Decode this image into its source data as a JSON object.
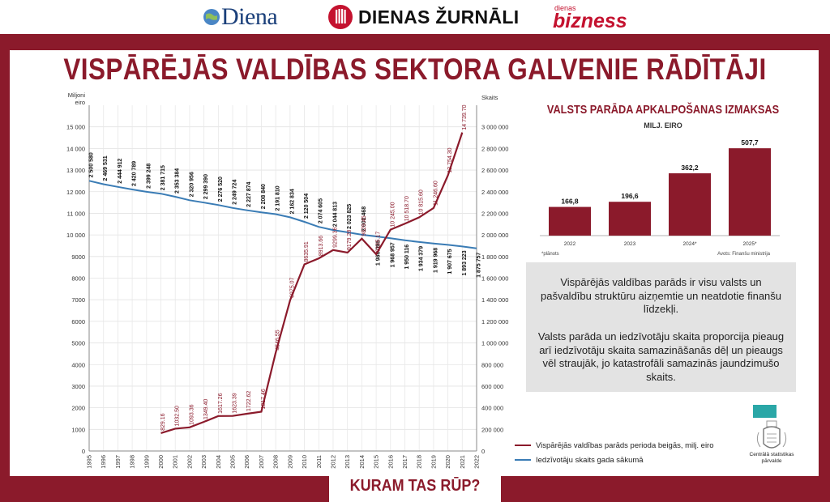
{
  "brands": {
    "diena": "Diena",
    "dienas_zurnali": "DIENAS ŽURNĀLI",
    "dienas_bizness_top": "dienas",
    "dienas_bizness_bottom": "bizness"
  },
  "title": "VISPĀRĒJĀS VALDĪBAS SEKTORA GALVENIE RĀDĪTĀJI",
  "footer_tab": "KURAM TAS RŪP?",
  "colors": {
    "brand_red": "#8b1a2b",
    "debt_line": "#8b1a2b",
    "population_line": "#3a7cb5",
    "info_box": "#e3e3e3",
    "teal": "#2aa7a7"
  },
  "chart_data": [
    {
      "type": "line",
      "left_axis_label": [
        "Miljoni",
        "eiro"
      ],
      "right_axis_label": "Skaits",
      "x": [
        "1995",
        "1996",
        "1997",
        "1998",
        "1999",
        "2000",
        "2001",
        "2002",
        "2003",
        "2004",
        "2005",
        "2006",
        "2007",
        "2008",
        "2009",
        "2010",
        "2011",
        "2012",
        "2013",
        "2014",
        "2015",
        "2016",
        "2017",
        "2018",
        "2019",
        "2020",
        "2021",
        "2022"
      ],
      "y_left_ticks": [
        "0",
        "1000",
        "2000",
        "3000",
        "4000",
        "5000",
        "6000",
        "7000",
        "8000",
        "9000",
        "10 000",
        "11 000",
        "12 000",
        "13 000",
        "14 000",
        "15 000"
      ],
      "y_left_range": [
        0,
        16000
      ],
      "y_right_ticks": [
        "0",
        "200 000",
        "400 000",
        "600 000",
        "800 000",
        "1 000 000",
        "1 200 000",
        "1 400 000",
        "1 600 000",
        "1 800 000",
        "2 000 000",
        "2 200 000",
        "2 400 000",
        "2 600 000",
        "2 800 000",
        "3 000 000"
      ],
      "y_right_range": [
        0,
        3200000
      ],
      "grid": true,
      "series": [
        {
          "name": "Vispārējās valdības parāds perioda beigās, milj. eiro",
          "axis": "left",
          "color": "#8b1a2b",
          "x": [
            "2000",
            "2001",
            "2002",
            "2003",
            "2004",
            "2005",
            "2006",
            "2007",
            "2008",
            "2009",
            "2010",
            "2011",
            "2012",
            "2013",
            "2014",
            "2015",
            "2016",
            "2017",
            "2018",
            "2019",
            "2020",
            "2021"
          ],
          "values": [
            829.16,
            1032.5,
            1093.36,
            1349.4,
            1617.26,
            1623.39,
            1722.62,
            1817.46,
            4546.55,
            6975.07,
            8635.91,
            8913.66,
            9299.36,
            9179.28,
            9829.45,
            9105.17,
            10245.0,
            10518.7,
            10815.6,
            11246.6,
            12754.3,
            14739.7
          ],
          "labels": [
            "829.16",
            "1032.50",
            "1093.36",
            "1349.40",
            "1617.26",
            "1623.39",
            "1722.62",
            "1817.46",
            "4546.55",
            "6975.07",
            "8635.91",
            "8913.66",
            "9299.36",
            "9179.28",
            "9829.45",
            "9105.17",
            "10 245.00",
            "10 518.70",
            "10 815.60",
            "11 246.60",
            "12 754.30",
            "14 739.70"
          ]
        },
        {
          "name": "Iedzīvotāju skaits gada sākumā",
          "axis": "right",
          "color": "#3a7cb5",
          "x": [
            "1995",
            "1996",
            "1997",
            "1998",
            "1999",
            "2000",
            "2001",
            "2002",
            "2003",
            "2004",
            "2005",
            "2006",
            "2007",
            "2008",
            "2009",
            "2010",
            "2011",
            "2012",
            "2013",
            "2014",
            "2015",
            "2016",
            "2017",
            "2018",
            "2019",
            "2020",
            "2021",
            "2022"
          ],
          "values": [
            2500580,
            2469531,
            2444912,
            2420789,
            2399248,
            2381715,
            2353384,
            2320956,
            2299390,
            2276520,
            2249724,
            2227874,
            2208840,
            2191810,
            2162834,
            2120504,
            2074605,
            2044813,
            2023825,
            2001468,
            1986096,
            1968957,
            1950116,
            1934379,
            1919968,
            1907675,
            1893223,
            1875757
          ],
          "labels": [
            "2 500 580",
            "2 469 531",
            "2 444 912",
            "2 420 789",
            "2 399 248",
            "2 381 715",
            "2 353 384",
            "2 320 956",
            "2 299 390",
            "2 276 520",
            "2 249 724",
            "2 227 874",
            "2 208 840",
            "2 191 810",
            "2 162 834",
            "2 120 504",
            "2 074 605",
            "2 044 813",
            "2 023 825",
            "2 001 468",
            "1 986 096",
            "1 968 957",
            "1 950 116",
            "1 934 379",
            "1 919 968",
            "1 907 675",
            "1 893 223",
            "1 875 757"
          ]
        }
      ]
    },
    {
      "type": "bar",
      "title": "VALSTS PARĀDA APKALPOŠANAS IZMAKSAS",
      "subtitle": "MILJ. EIRO",
      "categories": [
        "2022",
        "2023",
        "2024*",
        "2025*"
      ],
      "values": [
        166.8,
        196.6,
        362.2,
        507.7
      ],
      "labels": [
        "166,8",
        "196,6",
        "362,2",
        "507,7"
      ],
      "color": "#8b1a2b",
      "footnote": "*plānots",
      "source": "Avots: Finanšu ministrija"
    }
  ],
  "info": {
    "p1": "Vispārējās valdības parāds ir visu valsts un pašvaldību struktūru aizņemtie un neatdotie finanšu līdzekļi.",
    "p2": "Valsts parāda un iedzīvotāju skaita proporcija pieaug arī iedzīvotāju skaita samazināšanās dēļ un pieaugs vēl straujāk, jo katastrofāli samazinās jaundzimušo skaits."
  },
  "source_logo": {
    "label_line1": "Centrālā statistikas",
    "label_line2": "pārvalde"
  }
}
